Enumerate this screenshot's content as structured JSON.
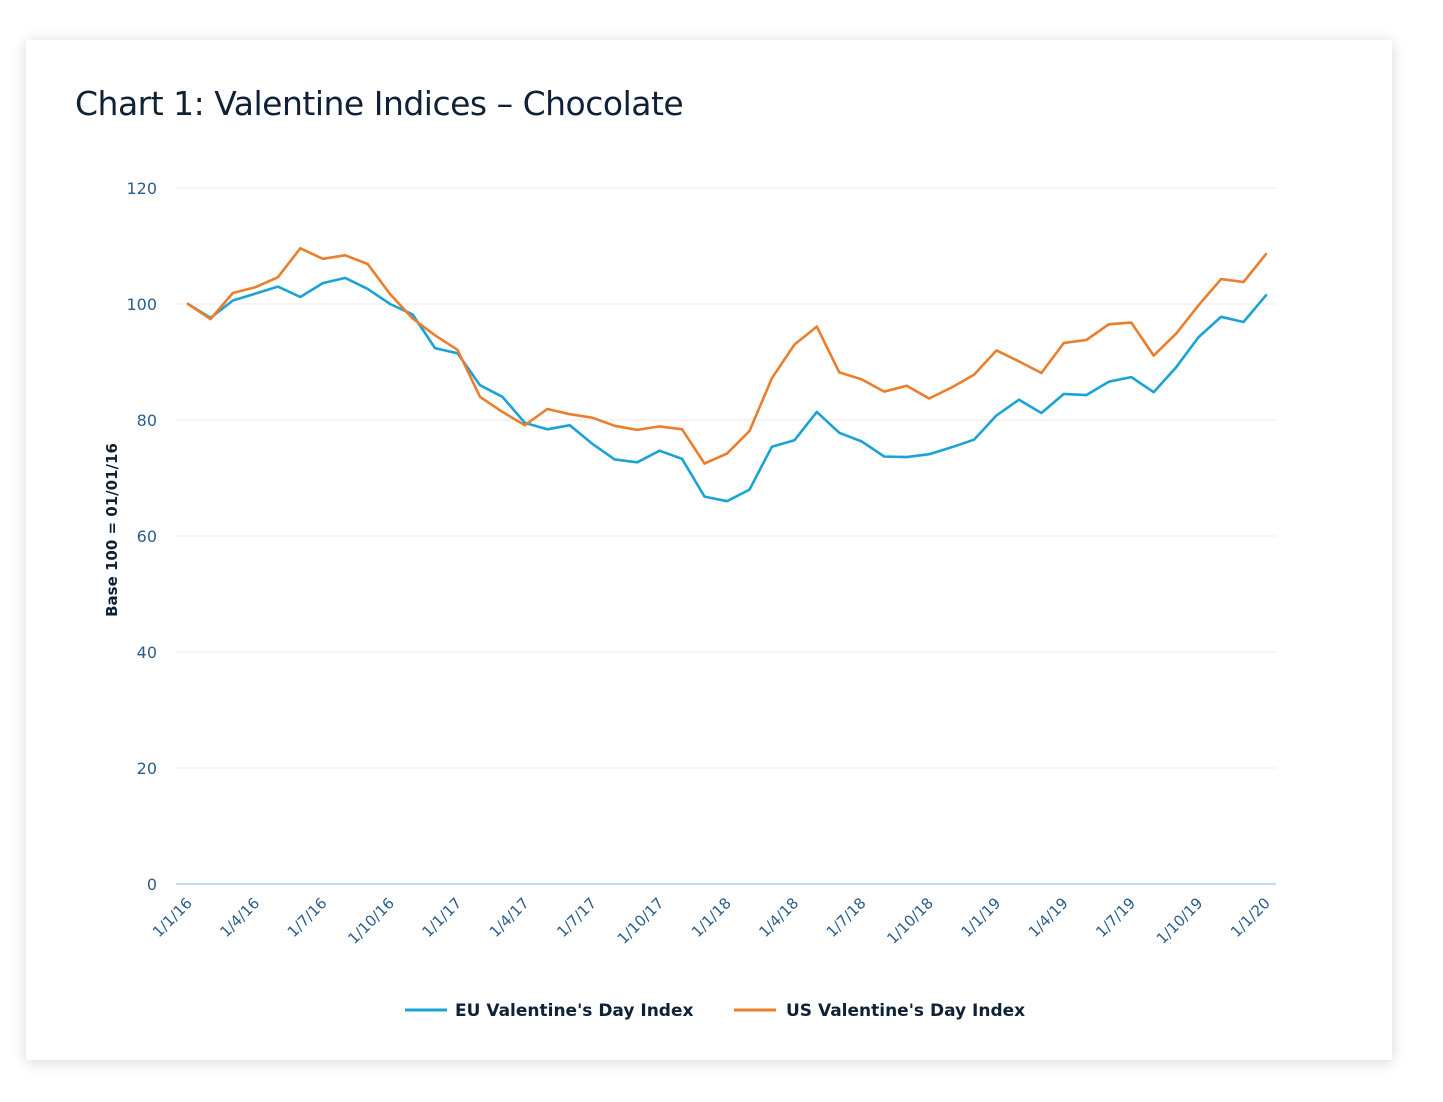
{
  "chart_data": {
    "type": "line",
    "title": "Chart 1: Valentine Indices – Chocolate",
    "ylabel": "Base 100 = 01/01/16",
    "ylim": [
      0,
      120
    ],
    "yticks": [
      "0",
      "20",
      "40",
      "60",
      "80",
      "100",
      "120"
    ],
    "xtick_labels": [
      "1/1/16",
      "1/4/16",
      "1/7/16",
      "1/10/16",
      "1/1/17",
      "1/4/17",
      "1/7/17",
      "1/10/17",
      "1/1/18",
      "1/4/18",
      "1/7/18",
      "1/10/18",
      "1/1/19",
      "1/4/19",
      "1/7/19",
      "1/10/19",
      "1/1/20"
    ],
    "grid": true,
    "legend_position": "bottom-center",
    "x": [
      "1/1/16",
      "1/2/16",
      "1/3/16",
      "1/4/16",
      "1/5/16",
      "1/6/16",
      "1/7/16",
      "1/8/16",
      "1/9/16",
      "1/10/16",
      "1/11/16",
      "1/12/16",
      "1/1/17",
      "1/2/17",
      "1/3/17",
      "1/4/17",
      "1/5/17",
      "1/6/17",
      "1/7/17",
      "1/8/17",
      "1/9/17",
      "1/10/17",
      "1/11/17",
      "1/12/17",
      "1/1/18",
      "1/2/18",
      "1/3/18",
      "1/4/18",
      "1/5/18",
      "1/6/18",
      "1/7/18",
      "1/8/18",
      "1/9/18",
      "1/10/18",
      "1/11/18",
      "1/12/18",
      "1/1/19",
      "1/2/19",
      "1/3/19",
      "1/4/19",
      "1/5/19",
      "1/6/19",
      "1/7/19",
      "1/8/19",
      "1/9/19",
      "1/10/19",
      "1/11/19",
      "1/12/19",
      "1/1/20"
    ],
    "series": [
      {
        "name": "EU Valentine's Day Index",
        "color": "#1aa3d4",
        "values": [
          100.0,
          97.6,
          100.6,
          101.8,
          103.0,
          101.2,
          103.6,
          104.5,
          102.6,
          100.0,
          98.2,
          92.4,
          91.5,
          86.0,
          84.0,
          79.5,
          78.4,
          79.1,
          75.9,
          73.2,
          72.7,
          74.7,
          73.3,
          66.8,
          66.0,
          68.0,
          75.4,
          76.5,
          81.4,
          77.8,
          76.3,
          73.7,
          73.6,
          74.1,
          75.3,
          76.6,
          80.8,
          83.5,
          81.2,
          84.5,
          84.3,
          86.6,
          87.4,
          84.8,
          89.1,
          94.3,
          97.8,
          96.9,
          101.5
        ]
      },
      {
        "name": "US Valentine's Day Index",
        "color": "#ea7e2d",
        "values": [
          100.0,
          97.4,
          101.9,
          102.9,
          104.6,
          109.6,
          107.8,
          108.4,
          106.9,
          101.7,
          97.5,
          94.6,
          92.1,
          84.0,
          81.4,
          79.1,
          81.9,
          81.0,
          80.4,
          79.0,
          78.3,
          78.9,
          78.4,
          72.5,
          74.2,
          78.1,
          87.2,
          93.0,
          96.1,
          88.2,
          87.0,
          84.9,
          85.9,
          83.7,
          85.6,
          87.8,
          92.0,
          90.1,
          88.1,
          93.3,
          93.8,
          96.5,
          96.8,
          91.1,
          94.9,
          99.8,
          104.3,
          103.8,
          108.6
        ]
      }
    ]
  }
}
